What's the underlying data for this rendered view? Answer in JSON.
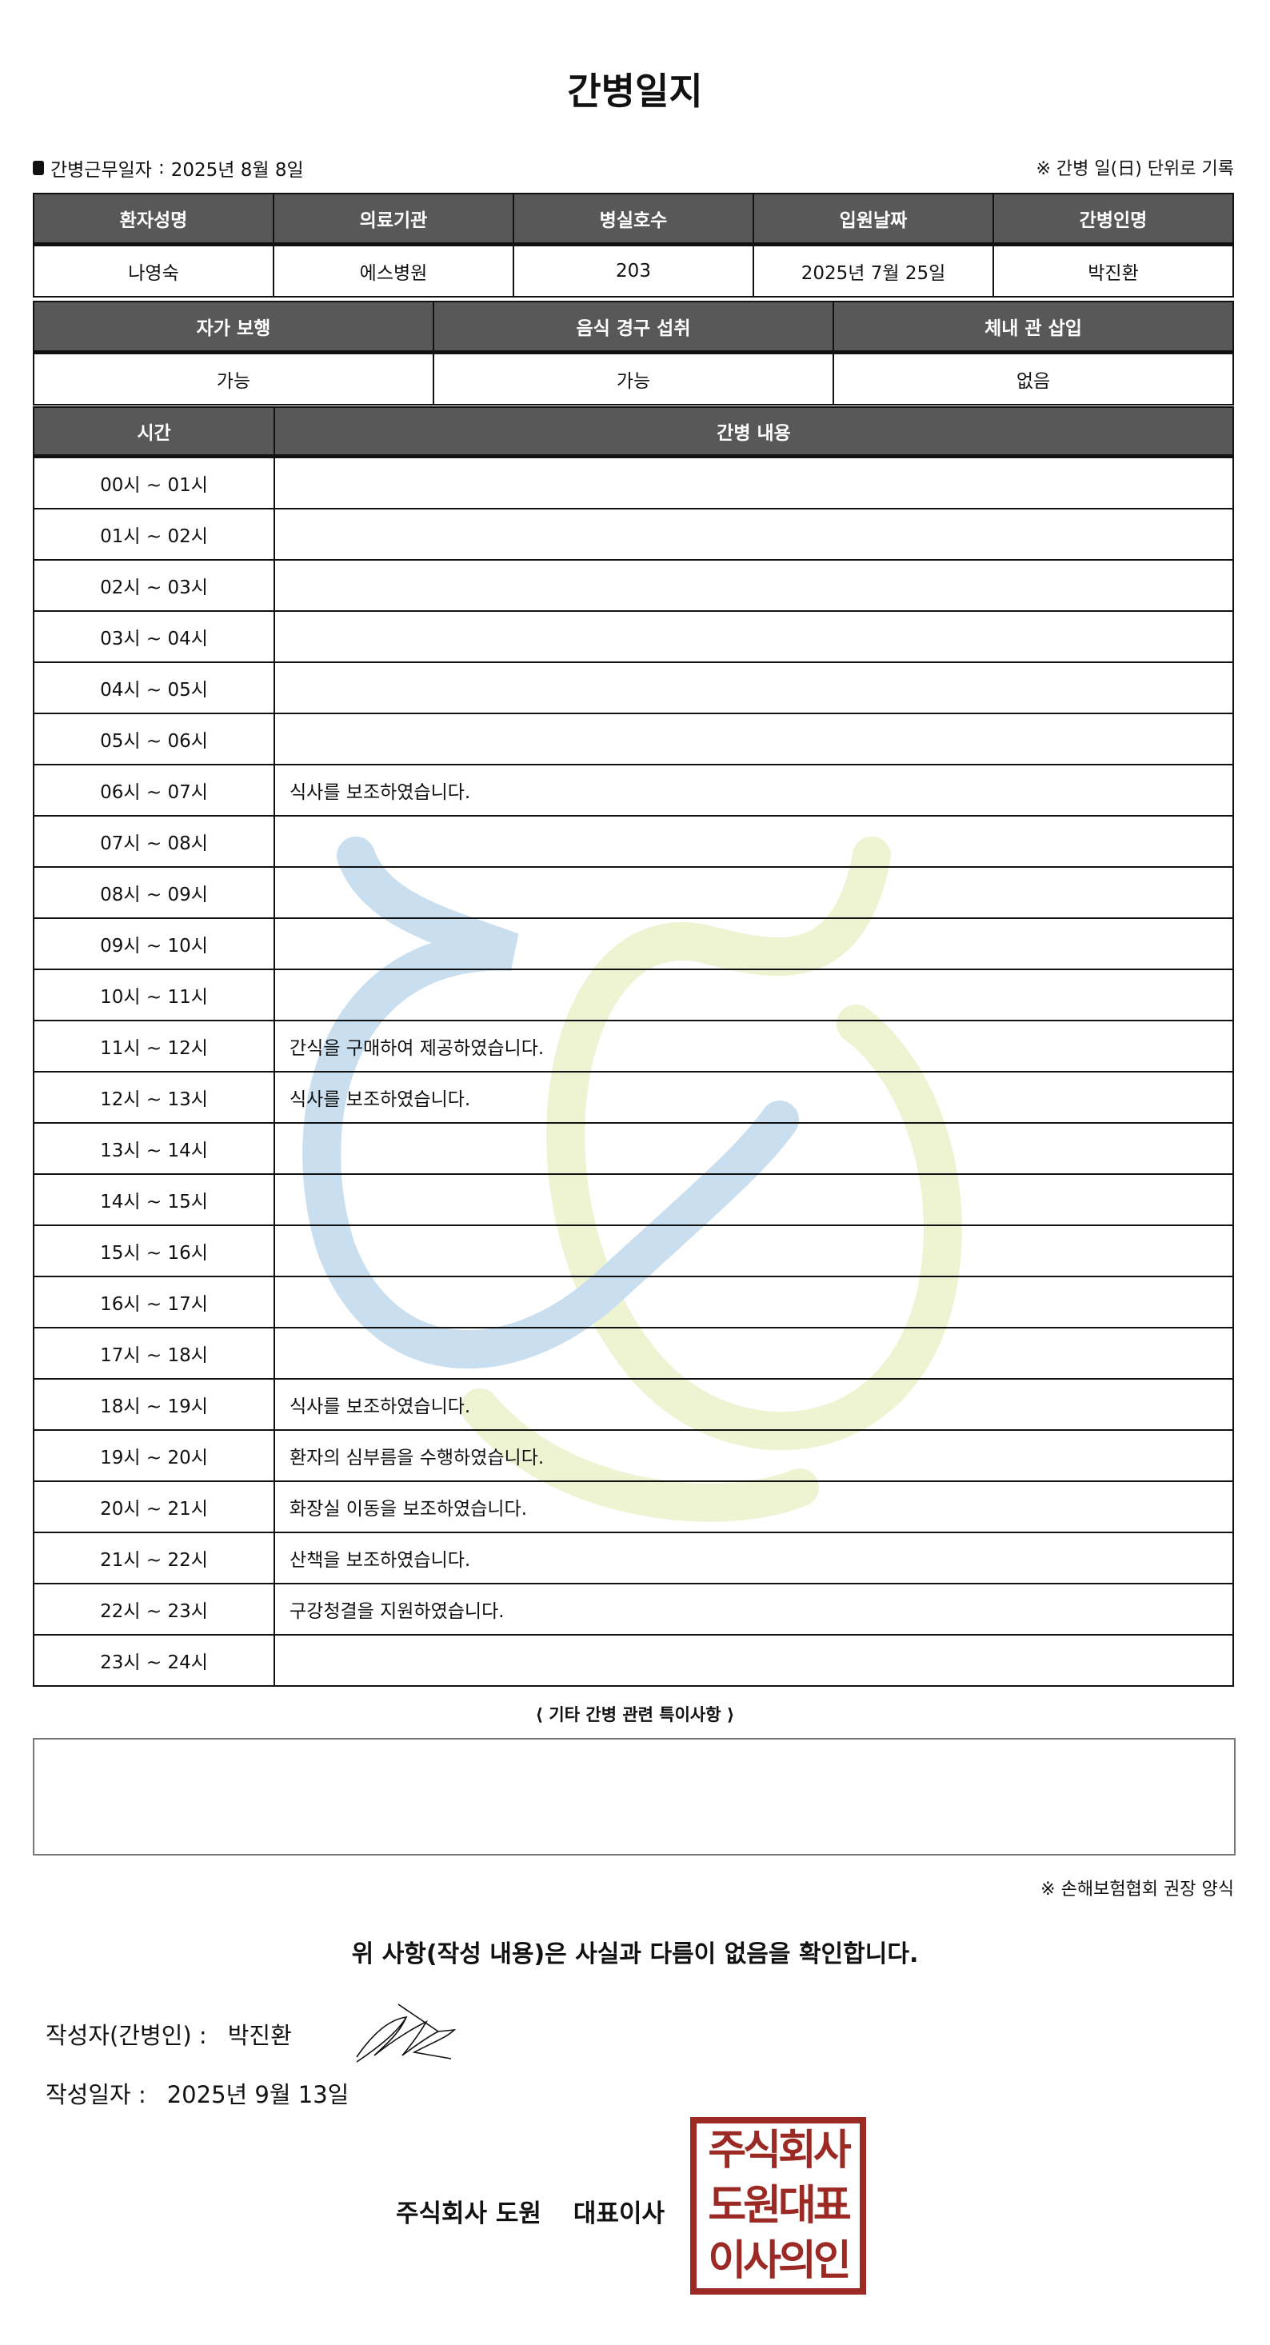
{
  "title": "간병일지",
  "work_date": {
    "label": "간병근무일자",
    "separator": ":",
    "value": "2025년 8월 8일"
  },
  "unit_note": "※ 간병 일(日) 단위로 기록",
  "patient_table": {
    "headers": [
      "환자성명",
      "의료기관",
      "병실호수",
      "입원날짜",
      "간병인명"
    ],
    "values": [
      "나영숙",
      "에스병원",
      "203",
      "2025년 7월 25일",
      "박진환"
    ]
  },
  "status_table": {
    "headers": [
      "자가 보행",
      "음식 경구 섭취",
      "체내 관 삽입"
    ],
    "values": [
      "가능",
      "가능",
      "없음"
    ]
  },
  "log_table": {
    "headers": [
      "시간",
      "간병 내용"
    ],
    "rows": [
      {
        "time": "00시 ~ 01시",
        "content": ""
      },
      {
        "time": "01시 ~ 02시",
        "content": ""
      },
      {
        "time": "02시 ~ 03시",
        "content": ""
      },
      {
        "time": "03시 ~ 04시",
        "content": ""
      },
      {
        "time": "04시 ~ 05시",
        "content": ""
      },
      {
        "time": "05시 ~ 06시",
        "content": ""
      },
      {
        "time": "06시 ~ 07시",
        "content": "식사를 보조하였습니다."
      },
      {
        "time": "07시 ~ 08시",
        "content": ""
      },
      {
        "time": "08시 ~ 09시",
        "content": ""
      },
      {
        "time": "09시 ~ 10시",
        "content": ""
      },
      {
        "time": "10시 ~ 11시",
        "content": ""
      },
      {
        "time": "11시 ~ 12시",
        "content": "간식을 구매하여 제공하였습니다."
      },
      {
        "time": "12시 ~ 13시",
        "content": "식사를 보조하였습니다."
      },
      {
        "time": "13시 ~ 14시",
        "content": ""
      },
      {
        "time": "14시 ~ 15시",
        "content": ""
      },
      {
        "time": "15시 ~ 16시",
        "content": ""
      },
      {
        "time": "16시 ~ 17시",
        "content": ""
      },
      {
        "time": "17시 ~ 18시",
        "content": ""
      },
      {
        "time": "18시 ~ 19시",
        "content": "식사를 보조하였습니다."
      },
      {
        "time": "19시 ~ 20시",
        "content": "환자의 심부름을 수행하였습니다."
      },
      {
        "time": "20시 ~ 21시",
        "content": "화장실 이동을 보조하였습니다."
      },
      {
        "time": "21시 ~ 22시",
        "content": "산책을 보조하였습니다."
      },
      {
        "time": "22시 ~ 23시",
        "content": "구강청결을 지원하였습니다."
      },
      {
        "time": "23시 ~ 24시",
        "content": ""
      }
    ]
  },
  "special_notes": {
    "label": "⟨ 기타 간병 관련 특이사항 ⟩",
    "value": ""
  },
  "form_note": "※ 손해보험협회 권장 양식",
  "confirmation": "위 사항(작성 내용)은 사실과 다름이 없음을 확인합니다.",
  "writer": {
    "label": "작성자(간병인) :",
    "value": "박진환"
  },
  "write_date": {
    "label": "작성일자 :",
    "value": "2025년 9월 13일"
  },
  "company": {
    "name": "주식회사 도원",
    "title": "대표이사"
  },
  "stamp": {
    "lines": [
      "주식회사",
      "도원대표",
      "이사의인"
    ],
    "color": "#9b2a25"
  },
  "colors": {
    "header_bg": "#585858",
    "watermark_blue": "#c9dff0",
    "watermark_green": "#eef4d2"
  }
}
